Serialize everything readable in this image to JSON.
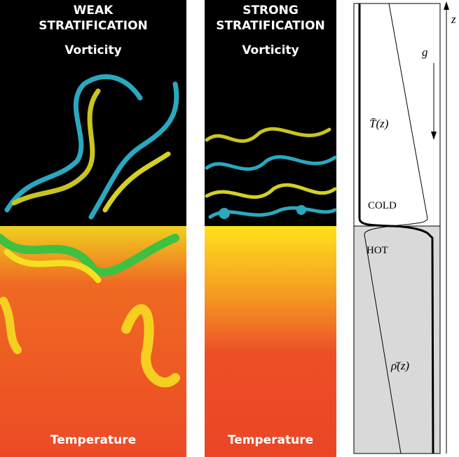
{
  "panels": [
    {
      "title_lines": [
        "WEAK",
        "STRATIFICATION"
      ],
      "top_label": "Vorticity",
      "bottom_label": "Temperature"
    },
    {
      "title_lines": [
        "STRONG",
        "STRATIFICATION"
      ],
      "top_label": "Vorticity",
      "bottom_label": "Temperature"
    }
  ],
  "profile": {
    "gravity": "g",
    "temperature": "T̄(z)",
    "cold": "COLD",
    "hot": "HOT",
    "density": "ρ̄(z)",
    "axis": "z"
  }
}
